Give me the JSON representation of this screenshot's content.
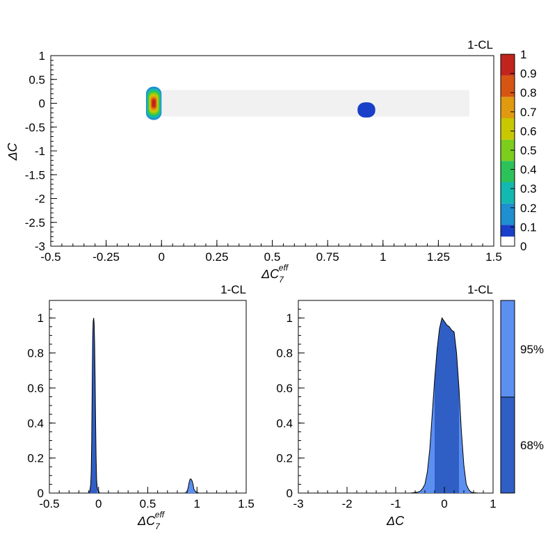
{
  "charts": {
    "top": {
      "corner_label": "1-CL",
      "x_label": "ΔC",
      "x_label_sub": "7",
      "x_label_sup": "eff",
      "y_label": "ΔC",
      "colorbar_ticks": [
        "0",
        "0.1",
        "0.2",
        "0.3",
        "0.4",
        "0.5",
        "0.6",
        "0.7",
        "0.8",
        "0.9",
        "1"
      ]
    },
    "bottom_left": {
      "corner_label": "1-CL",
      "x_label": "ΔC",
      "x_label_sub": "7",
      "x_label_sup": "eff"
    },
    "bottom_right": {
      "corner_label": "1-CL",
      "x_label": "ΔC"
    },
    "legend": {
      "labels": [
        "95%",
        "68%"
      ],
      "colors": [
        "#5b8ff0",
        "#2f5ec4"
      ]
    }
  },
  "chart_data": [
    {
      "type": "heatmap",
      "title": "",
      "corner_label": "1-CL",
      "xlabel": "ΔC_7^eff",
      "ylabel": "ΔC",
      "xlim": [
        -0.5,
        1.5
      ],
      "ylim": [
        -3,
        1
      ],
      "x_ticks": [
        "-0.5",
        "-0.25",
        "0",
        "0.25",
        "0.5",
        "0.75",
        "1",
        "1.25",
        "1.5"
      ],
      "y_ticks": [
        "-3",
        "-2.5",
        "-2",
        "-1.5",
        "-1",
        "-0.5",
        "0",
        "0.5",
        "1"
      ],
      "z_range": [
        0,
        1
      ],
      "colormap": [
        "#ffffff",
        "#1a3fc8",
        "#1e8fd0",
        "#13b8b0",
        "#2cc25a",
        "#7ccd1c",
        "#c8c800",
        "#e09a10",
        "#d65512",
        "#c0241d"
      ],
      "regions": [
        {
          "x_center": -0.035,
          "y_center": 0.0,
          "x_halfwidth": 0.035,
          "y_halfwidth": 0.35,
          "peak": 1.0
        },
        {
          "x_center": 0.925,
          "y_center": -0.14,
          "x_halfwidth": 0.04,
          "y_halfwidth": 0.16,
          "peak": 0.09
        }
      ],
      "colorbar_ticks": [
        0,
        0.1,
        0.2,
        0.3,
        0.4,
        0.5,
        0.6,
        0.7,
        0.8,
        0.9,
        1
      ]
    },
    {
      "type": "area",
      "title": "",
      "corner_label": "1-CL",
      "xlabel": "ΔC_7^eff",
      "ylabel": "",
      "xlim": [
        -0.5,
        1.5
      ],
      "ylim": [
        0,
        1.1
      ],
      "x_ticks": [
        "-0.5",
        "0",
        "0.5",
        "1",
        "1.5"
      ],
      "y_ticks": [
        "0",
        "0.2",
        "0.4",
        "0.6",
        "0.8",
        "1"
      ],
      "x": [
        -0.12,
        -0.1,
        -0.09,
        -0.08,
        -0.075,
        -0.07,
        -0.065,
        -0.06,
        -0.055,
        -0.05,
        -0.045,
        -0.04,
        -0.035,
        -0.03,
        -0.025,
        -0.02,
        -0.015,
        -0.01,
        0.0,
        0.01,
        0.03,
        0.85,
        0.88,
        0.9,
        0.91,
        0.92,
        0.93,
        0.94,
        0.95,
        0.96,
        0.97,
        0.99,
        1.02
      ],
      "y": [
        0,
        0,
        0.01,
        0.05,
        0.12,
        0.3,
        0.6,
        0.88,
        0.98,
        1.0,
        0.97,
        0.85,
        0.65,
        0.4,
        0.2,
        0.08,
        0.04,
        0.02,
        0.01,
        0,
        0,
        0,
        0,
        0.01,
        0.03,
        0.06,
        0.08,
        0.08,
        0.07,
        0.05,
        0.02,
        0.005,
        0
      ],
      "band_68": [
        -0.09,
        -0.015
      ],
      "band_95": [
        -0.1,
        0.0
      ]
    },
    {
      "type": "area",
      "title": "",
      "corner_label": "1-CL",
      "xlabel": "ΔC",
      "ylabel": "",
      "xlim": [
        -3,
        1
      ],
      "ylim": [
        0,
        1.1
      ],
      "x_ticks": [
        "-3",
        "-2",
        "-1",
        "0",
        "1"
      ],
      "y_ticks": [
        "0",
        "0.2",
        "0.4",
        "0.6",
        "0.8",
        "1"
      ],
      "x": [
        -0.7,
        -0.55,
        -0.5,
        -0.45,
        -0.4,
        -0.35,
        -0.3,
        -0.25,
        -0.2,
        -0.15,
        -0.1,
        -0.05,
        0.0,
        0.05,
        0.1,
        0.15,
        0.2,
        0.25,
        0.3,
        0.35,
        0.4,
        0.45,
        0.5,
        0.55,
        0.6,
        0.7
      ],
      "y": [
        0,
        0.005,
        0.01,
        0.025,
        0.05,
        0.12,
        0.25,
        0.45,
        0.65,
        0.82,
        0.94,
        1.0,
        0.98,
        0.96,
        0.95,
        0.93,
        0.92,
        0.8,
        0.6,
        0.35,
        0.16,
        0.05,
        0.02,
        0.005,
        0.002,
        0
      ],
      "band_68": [
        -0.2,
        0.3
      ],
      "band_95": [
        -0.4,
        0.4
      ]
    }
  ]
}
